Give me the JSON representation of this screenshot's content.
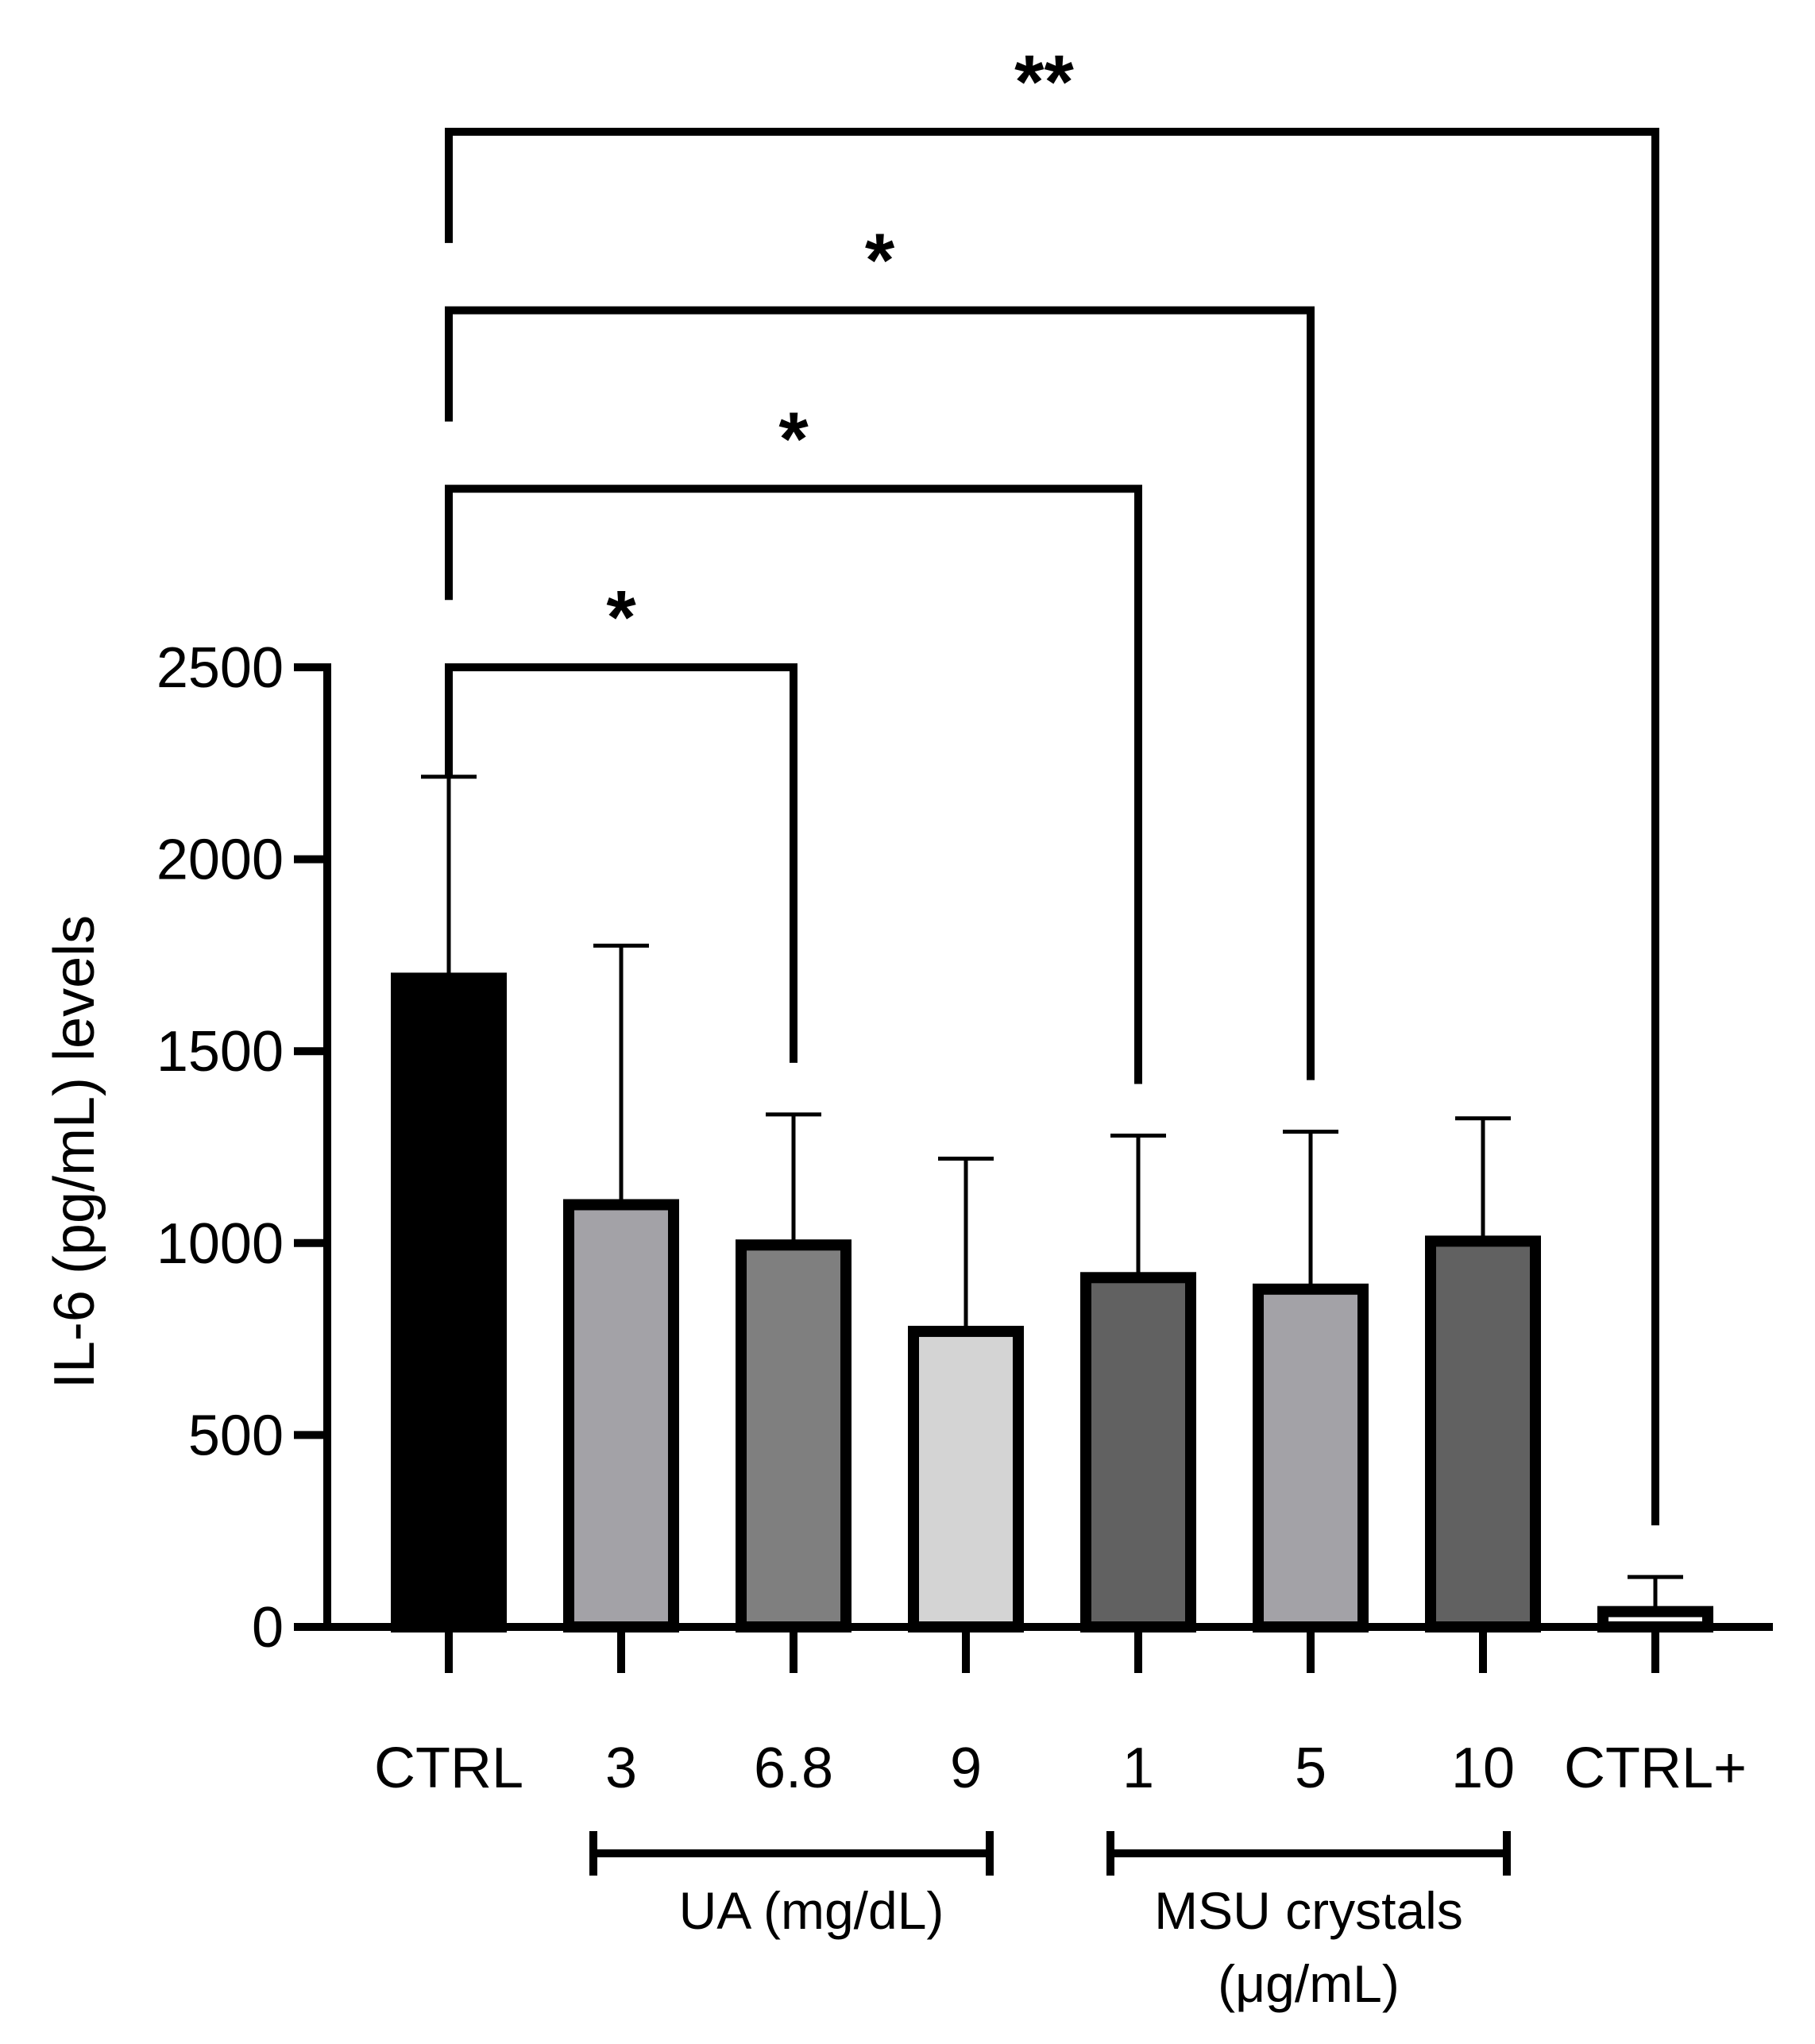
{
  "chart_data": {
    "type": "bar",
    "title": "",
    "xlabel": "",
    "ylabel": "IL-6 (pg/mL) levels",
    "ylim": [
      0,
      2500
    ],
    "yticks": [
      0,
      500,
      1000,
      1500,
      2000,
      2500
    ],
    "categories": [
      "CTRL",
      "3",
      "6.8",
      "9",
      "1",
      "5",
      "10",
      "CTRL+"
    ],
    "values": [
      1690,
      1100,
      995,
      770,
      910,
      880,
      1005,
      40
    ],
    "errors": [
      525,
      675,
      340,
      450,
      370,
      410,
      320,
      90
    ],
    "bar_colors": [
      "#000000",
      "#a3a2a7",
      "#7f7f7f",
      "#d4d4d4",
      "#616161",
      "#a3a2a7",
      "#616161",
      "#ffffff"
    ],
    "groups": [
      {
        "label": "UA (mg/dL)",
        "start": 1,
        "end": 3
      },
      {
        "label": "MSU crystals",
        "label2": "(μg/mL)",
        "start": 4,
        "end": 6
      }
    ],
    "significance": [
      {
        "from": 0,
        "to": 2,
        "label": "*",
        "level": 2500
      },
      {
        "from": 0,
        "to": 4,
        "label": "*",
        "level": 2965
      },
      {
        "from": 0,
        "to": 5,
        "label": "*",
        "level": 3430
      },
      {
        "from": 0,
        "to": 7,
        "label": "**",
        "level": 3895
      }
    ]
  }
}
